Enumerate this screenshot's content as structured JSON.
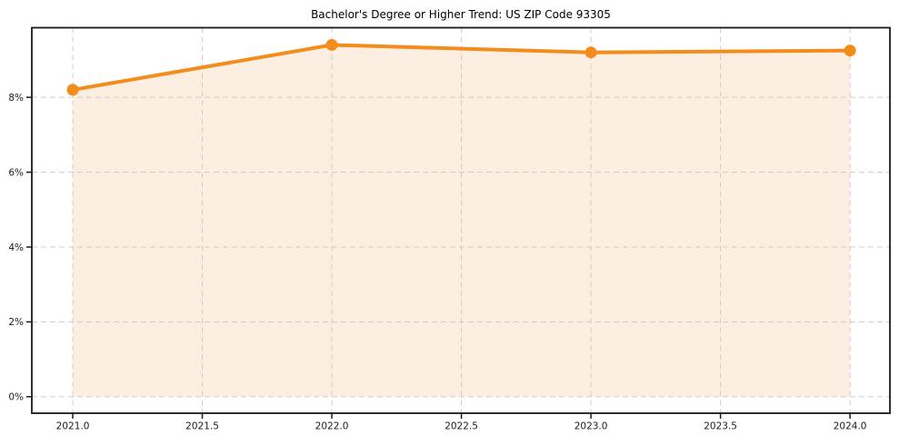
{
  "chart_data": {
    "type": "line",
    "title": "Bachelor's Degree or Higher Trend: US ZIP Code 93305",
    "x": [
      2021,
      2022,
      2023,
      2024
    ],
    "series": [
      {
        "name": "Bachelor's Degree or Higher",
        "values": [
          8.2,
          9.4,
          9.2,
          9.25
        ]
      }
    ],
    "xlabel": "",
    "ylabel": "",
    "xlim": [
      2020.842,
      2024.154
    ],
    "ylim": [
      -0.44,
      9.86
    ],
    "x_ticks": [
      2021.0,
      2021.5,
      2022.0,
      2022.5,
      2023.0,
      2023.5,
      2024.0
    ],
    "x_tick_labels": [
      "2021.0",
      "2021.5",
      "2022.0",
      "2022.5",
      "2023.0",
      "2023.5",
      "2024.0"
    ],
    "y_ticks": [
      0,
      2,
      4,
      6,
      8
    ],
    "y_tick_labels": [
      "0%",
      "2%",
      "4%",
      "6%",
      "8%"
    ],
    "grid": true,
    "grid_style": "dashed",
    "legend": "none",
    "fill_baseline": 0,
    "marker": "circle",
    "colors": {
      "line": "#f28c1d",
      "marker": "#f28c1d",
      "area_fill": "#fcefe1",
      "grid": "#cdcdcd",
      "spine": "#1a1a1a",
      "tick_label": "#1a1a1a",
      "title": "#000000",
      "background": "#ffffff"
    }
  }
}
